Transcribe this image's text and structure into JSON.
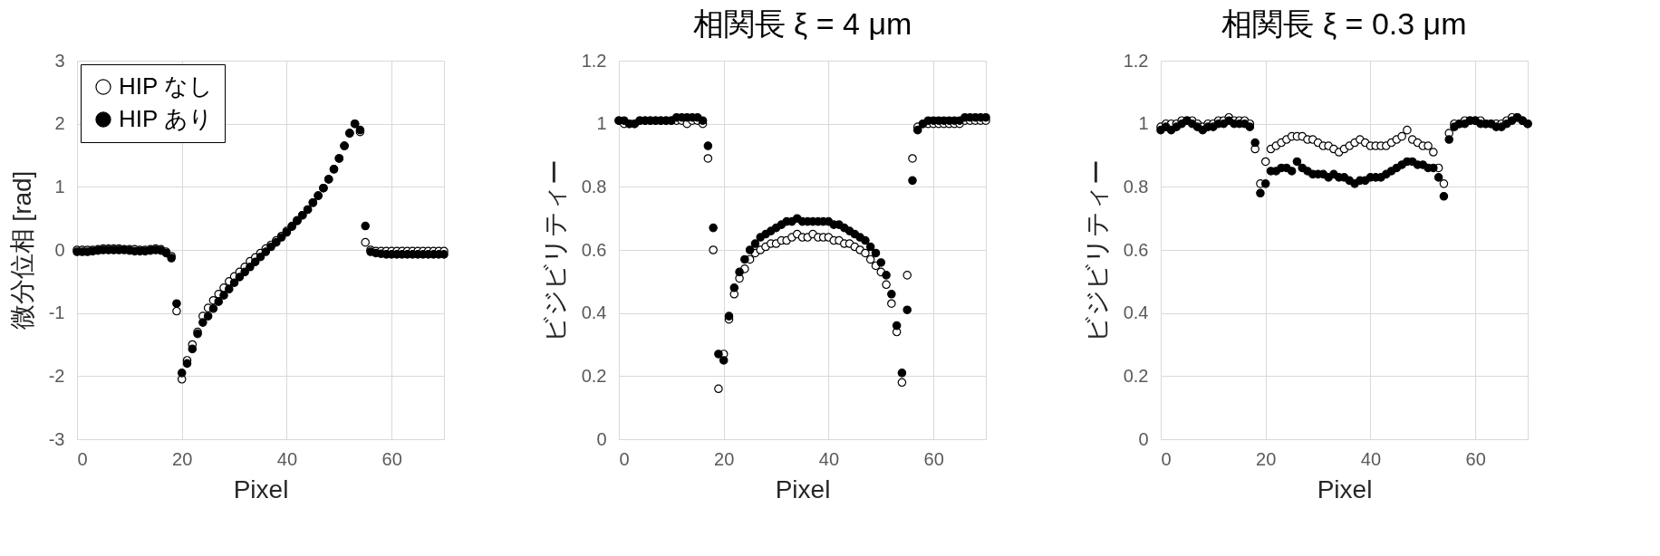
{
  "chart_data": [
    {
      "type": "scatter",
      "xlabel": "Pixel",
      "ylabel": "微分位相 [rad]",
      "xlim": [
        0,
        70
      ],
      "xticks": [
        0,
        20,
        40,
        60
      ],
      "ylim": [
        -3,
        3
      ],
      "yticks": [
        -3,
        -2,
        -1,
        0,
        1,
        2,
        3
      ],
      "grid": true,
      "legend": "top left",
      "marker": "circle",
      "x": [
        0,
        1,
        2,
        3,
        4,
        5,
        6,
        7,
        8,
        9,
        10,
        11,
        12,
        13,
        14,
        15,
        16,
        17,
        18,
        19,
        20,
        21,
        22,
        23,
        24,
        25,
        26,
        27,
        28,
        29,
        30,
        31,
        32,
        33,
        34,
        35,
        36,
        37,
        38,
        39,
        40,
        41,
        42,
        43,
        44,
        45,
        46,
        47,
        48,
        49,
        50,
        51,
        52,
        53,
        54,
        55,
        56,
        57,
        58,
        59,
        60,
        61,
        62,
        63,
        64,
        65,
        66,
        67,
        68,
        69,
        70
      ],
      "series": [
        {
          "name": "HIP なし",
          "color": "#ffffff",
          "values": [
            0,
            0,
            0,
            0,
            0.01,
            0.02,
            0.02,
            0.02,
            0.02,
            0.01,
            0.01,
            0.01,
            0,
            0,
            0.01,
            0.02,
            0.01,
            -0.03,
            -0.1,
            -0.97,
            -2.05,
            -1.75,
            -1.5,
            -1.3,
            -1.05,
            -0.92,
            -0.8,
            -0.7,
            -0.6,
            -0.5,
            -0.42,
            -0.35,
            -0.27,
            -0.18,
            -0.12,
            -0.05,
            0.02,
            0.08,
            0.15,
            0.22,
            0.3,
            0.38,
            0.47,
            0.55,
            0.64,
            0.75,
            0.86,
            0.98,
            1.12,
            1.28,
            1.45,
            1.65,
            1.85,
            2.0,
            1.87,
            0.12,
            0,
            -0.02,
            -0.02,
            -0.02,
            -0.02,
            -0.02,
            -0.02,
            -0.02,
            -0.02,
            -0.02,
            -0.02,
            -0.02,
            -0.02,
            -0.02,
            -0.02
          ]
        },
        {
          "name": "HIP あり",
          "color": "#000000",
          "values": [
            -0.03,
            -0.03,
            -0.03,
            -0.02,
            -0.01,
            0,
            0,
            0,
            0,
            0,
            -0.01,
            -0.02,
            -0.02,
            -0.02,
            -0.01,
            0,
            -0.01,
            -0.05,
            -0.13,
            -0.85,
            -1.95,
            -1.8,
            -1.57,
            -1.33,
            -1.15,
            -1.05,
            -0.93,
            -0.82,
            -0.72,
            -0.62,
            -0.52,
            -0.43,
            -0.35,
            -0.27,
            -0.19,
            -0.11,
            -0.03,
            0.05,
            0.12,
            0.2,
            0.28,
            0.37,
            0.46,
            0.55,
            0.64,
            0.75,
            0.86,
            0.98,
            1.12,
            1.28,
            1.45,
            1.65,
            1.85,
            2.0,
            1.9,
            0.38,
            -0.03,
            -0.05,
            -0.06,
            -0.07,
            -0.07,
            -0.07,
            -0.07,
            -0.07,
            -0.07,
            -0.07,
            -0.07,
            -0.07,
            -0.07,
            -0.07,
            -0.07
          ]
        }
      ]
    },
    {
      "type": "scatter",
      "title": "相関長 ξ = 4 μm",
      "xlabel": "Pixel",
      "ylabel": "ビジビリティー",
      "xlim": [
        0,
        70
      ],
      "xticks": [
        0,
        20,
        40,
        60
      ],
      "ylim": [
        0,
        1.2
      ],
      "yticks": [
        0,
        0.2,
        0.4,
        0.6,
        0.8,
        1,
        1.2
      ],
      "grid": true,
      "marker": "circle",
      "x": [
        0,
        1,
        2,
        3,
        4,
        5,
        6,
        7,
        8,
        9,
        10,
        11,
        12,
        13,
        14,
        15,
        16,
        17,
        18,
        19,
        20,
        21,
        22,
        23,
        24,
        25,
        26,
        27,
        28,
        29,
        30,
        31,
        32,
        33,
        34,
        35,
        36,
        37,
        38,
        39,
        40,
        41,
        42,
        43,
        44,
        45,
        46,
        47,
        48,
        49,
        50,
        51,
        52,
        53,
        54,
        55,
        56,
        57,
        58,
        59,
        60,
        61,
        62,
        63,
        64,
        65,
        66,
        67,
        68,
        69,
        70
      ],
      "series": [
        {
          "color": "#ffffff",
          "values": [
            1.01,
            1.0,
            1.0,
            1.0,
            1.01,
            1.01,
            1.01,
            1.01,
            1.01,
            1.01,
            1.01,
            1.01,
            1.01,
            1.0,
            1.01,
            1.01,
            1.0,
            0.89,
            0.6,
            0.16,
            0.27,
            0.38,
            0.46,
            0.51,
            0.54,
            0.57,
            0.59,
            0.6,
            0.61,
            0.62,
            0.62,
            0.63,
            0.63,
            0.64,
            0.65,
            0.64,
            0.64,
            0.65,
            0.64,
            0.64,
            0.64,
            0.63,
            0.63,
            0.62,
            0.62,
            0.61,
            0.6,
            0.59,
            0.57,
            0.55,
            0.53,
            0.49,
            0.43,
            0.34,
            0.18,
            0.52,
            0.89,
            0.99,
            1.0,
            1.0,
            1.0,
            1.0,
            1.0,
            1.0,
            1.0,
            1.0,
            1.01,
            1.01,
            1.01,
            1.01,
            1.01
          ]
        },
        {
          "color": "#000000",
          "values": [
            1.01,
            1.01,
            1.0,
            1.0,
            1.01,
            1.01,
            1.01,
            1.01,
            1.01,
            1.01,
            1.01,
            1.02,
            1.02,
            1.02,
            1.02,
            1.02,
            1.01,
            0.93,
            0.67,
            0.27,
            0.25,
            0.39,
            0.48,
            0.53,
            0.57,
            0.6,
            0.62,
            0.64,
            0.65,
            0.66,
            0.67,
            0.68,
            0.69,
            0.69,
            0.7,
            0.69,
            0.69,
            0.69,
            0.69,
            0.69,
            0.69,
            0.68,
            0.68,
            0.67,
            0.66,
            0.65,
            0.64,
            0.63,
            0.61,
            0.59,
            0.56,
            0.52,
            0.46,
            0.36,
            0.21,
            0.41,
            0.82,
            0.98,
            1.0,
            1.01,
            1.01,
            1.01,
            1.01,
            1.01,
            1.01,
            1.01,
            1.02,
            1.02,
            1.02,
            1.02,
            1.02
          ]
        }
      ]
    },
    {
      "type": "scatter",
      "title": "相関長 ξ = 0.3 μm",
      "xlabel": "Pixel",
      "ylabel": "ビジビリティー",
      "xlim": [
        0,
        70
      ],
      "xticks": [
        0,
        20,
        40,
        60
      ],
      "ylim": [
        0,
        1.2
      ],
      "yticks": [
        0,
        0.2,
        0.4,
        0.6,
        0.8,
        1,
        1.2
      ],
      "grid": true,
      "marker": "circle",
      "x": [
        0,
        1,
        2,
        3,
        4,
        5,
        6,
        7,
        8,
        9,
        10,
        11,
        12,
        13,
        14,
        15,
        16,
        17,
        18,
        19,
        20,
        21,
        22,
        23,
        24,
        25,
        26,
        27,
        28,
        29,
        30,
        31,
        32,
        33,
        34,
        35,
        36,
        37,
        38,
        39,
        40,
        41,
        42,
        43,
        44,
        45,
        46,
        47,
        48,
        49,
        50,
        51,
        52,
        53,
        54,
        55,
        56,
        57,
        58,
        59,
        60,
        61,
        62,
        63,
        64,
        65,
        66,
        67,
        68,
        69,
        70
      ],
      "series": [
        {
          "color": "#ffffff",
          "values": [
            0.99,
            1.0,
            1.0,
            1.0,
            1.01,
            1.01,
            1.01,
            1.0,
            0.99,
            1.0,
            1.0,
            1.01,
            1.01,
            1.02,
            1.01,
            1.01,
            1.01,
            1.0,
            0.92,
            0.81,
            0.88,
            0.92,
            0.93,
            0.94,
            0.95,
            0.96,
            0.96,
            0.96,
            0.95,
            0.95,
            0.94,
            0.93,
            0.93,
            0.92,
            0.91,
            0.92,
            0.93,
            0.94,
            0.95,
            0.94,
            0.93,
            0.93,
            0.93,
            0.93,
            0.94,
            0.95,
            0.96,
            0.98,
            0.95,
            0.94,
            0.93,
            0.93,
            0.91,
            0.86,
            0.81,
            0.97,
            1.0,
            1.0,
            1.01,
            1.01,
            1.01,
            1.01,
            1.0,
            1.0,
            1.0,
            1.0,
            1.01,
            1.02,
            1.02,
            1.01,
            1.0
          ]
        },
        {
          "color": "#000000",
          "values": [
            0.98,
            0.99,
            0.98,
            0.99,
            1.0,
            1.01,
            1.0,
            0.99,
            0.98,
            0.99,
            0.99,
            1.0,
            1.0,
            1.01,
            1.0,
            1.0,
            1.0,
            0.99,
            0.94,
            0.78,
            0.81,
            0.85,
            0.85,
            0.86,
            0.86,
            0.85,
            0.88,
            0.86,
            0.85,
            0.84,
            0.84,
            0.84,
            0.83,
            0.84,
            0.83,
            0.83,
            0.82,
            0.81,
            0.82,
            0.82,
            0.83,
            0.83,
            0.83,
            0.84,
            0.85,
            0.86,
            0.87,
            0.88,
            0.88,
            0.87,
            0.87,
            0.86,
            0.86,
            0.83,
            0.77,
            0.95,
            0.99,
            1.0,
            1.0,
            1.01,
            1.01,
            1.0,
            1.0,
            1.0,
            0.99,
            0.99,
            1.0,
            1.01,
            1.02,
            1.01,
            1.0
          ]
        }
      ]
    }
  ]
}
